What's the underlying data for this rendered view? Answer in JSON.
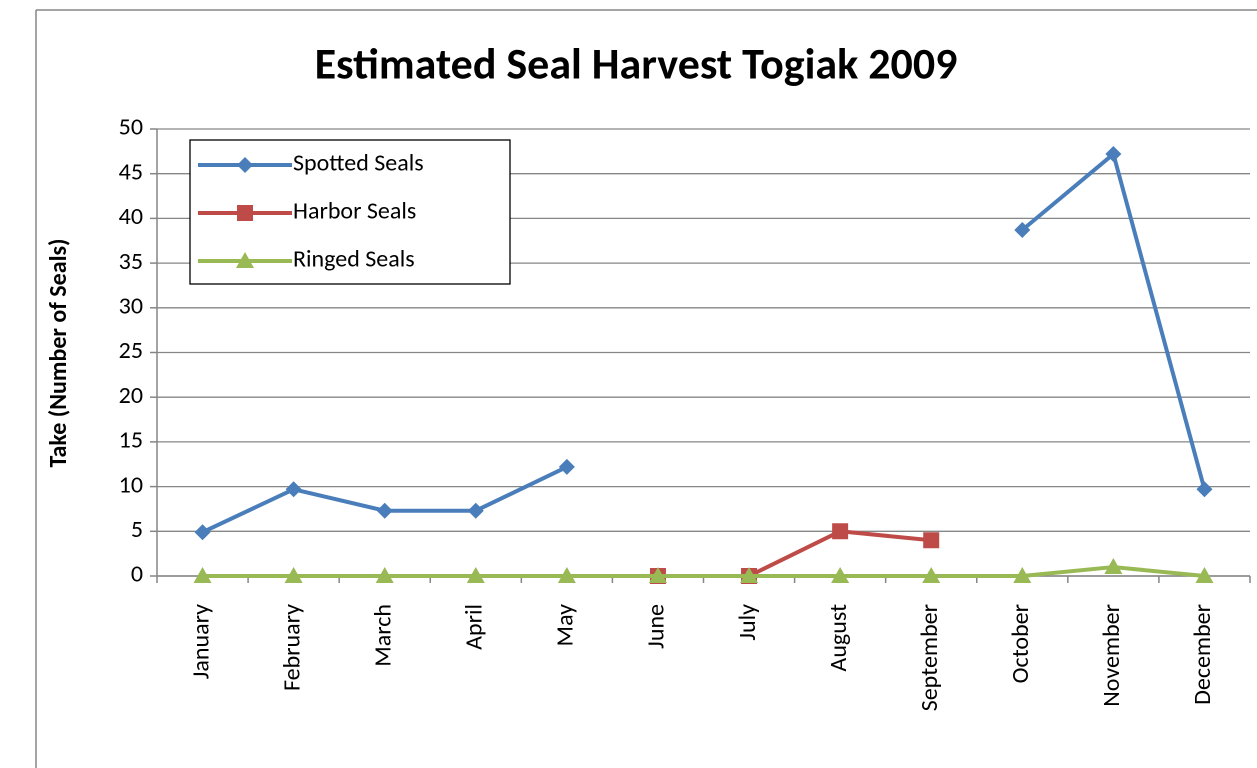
{
  "chart_data": {
    "type": "line",
    "title": "Estimated Seal Harvest Togiak 2009",
    "y_label": "Take (Number of Seals)",
    "categories": [
      "January",
      "February",
      "March",
      "April",
      "May",
      "June",
      "July",
      "August",
      "September",
      "October",
      "November",
      "December"
    ],
    "series": [
      {
        "name": "Spotted Seals",
        "color": "#4a7ebb",
        "marker": "diamond",
        "values": [
          4.9,
          9.7,
          7.3,
          7.3,
          12.2,
          null,
          null,
          null,
          null,
          38.7,
          47.2,
          9.7
        ]
      },
      {
        "name": "Harbor Seals",
        "color": "#be4b48",
        "marker": "square",
        "values": [
          null,
          null,
          null,
          null,
          null,
          0,
          0,
          5,
          4,
          null,
          null,
          null
        ]
      },
      {
        "name": "Ringed Seals",
        "color": "#98b954",
        "marker": "triangle",
        "values": [
          0,
          0,
          0,
          0,
          0,
          0,
          0,
          0,
          0,
          0,
          1,
          0
        ]
      }
    ],
    "ylim": [
      0,
      50
    ],
    "yticks": [
      0,
      5,
      10,
      15,
      20,
      25,
      30,
      35,
      40,
      45,
      50
    ],
    "grid": true,
    "legend": "upper left"
  }
}
